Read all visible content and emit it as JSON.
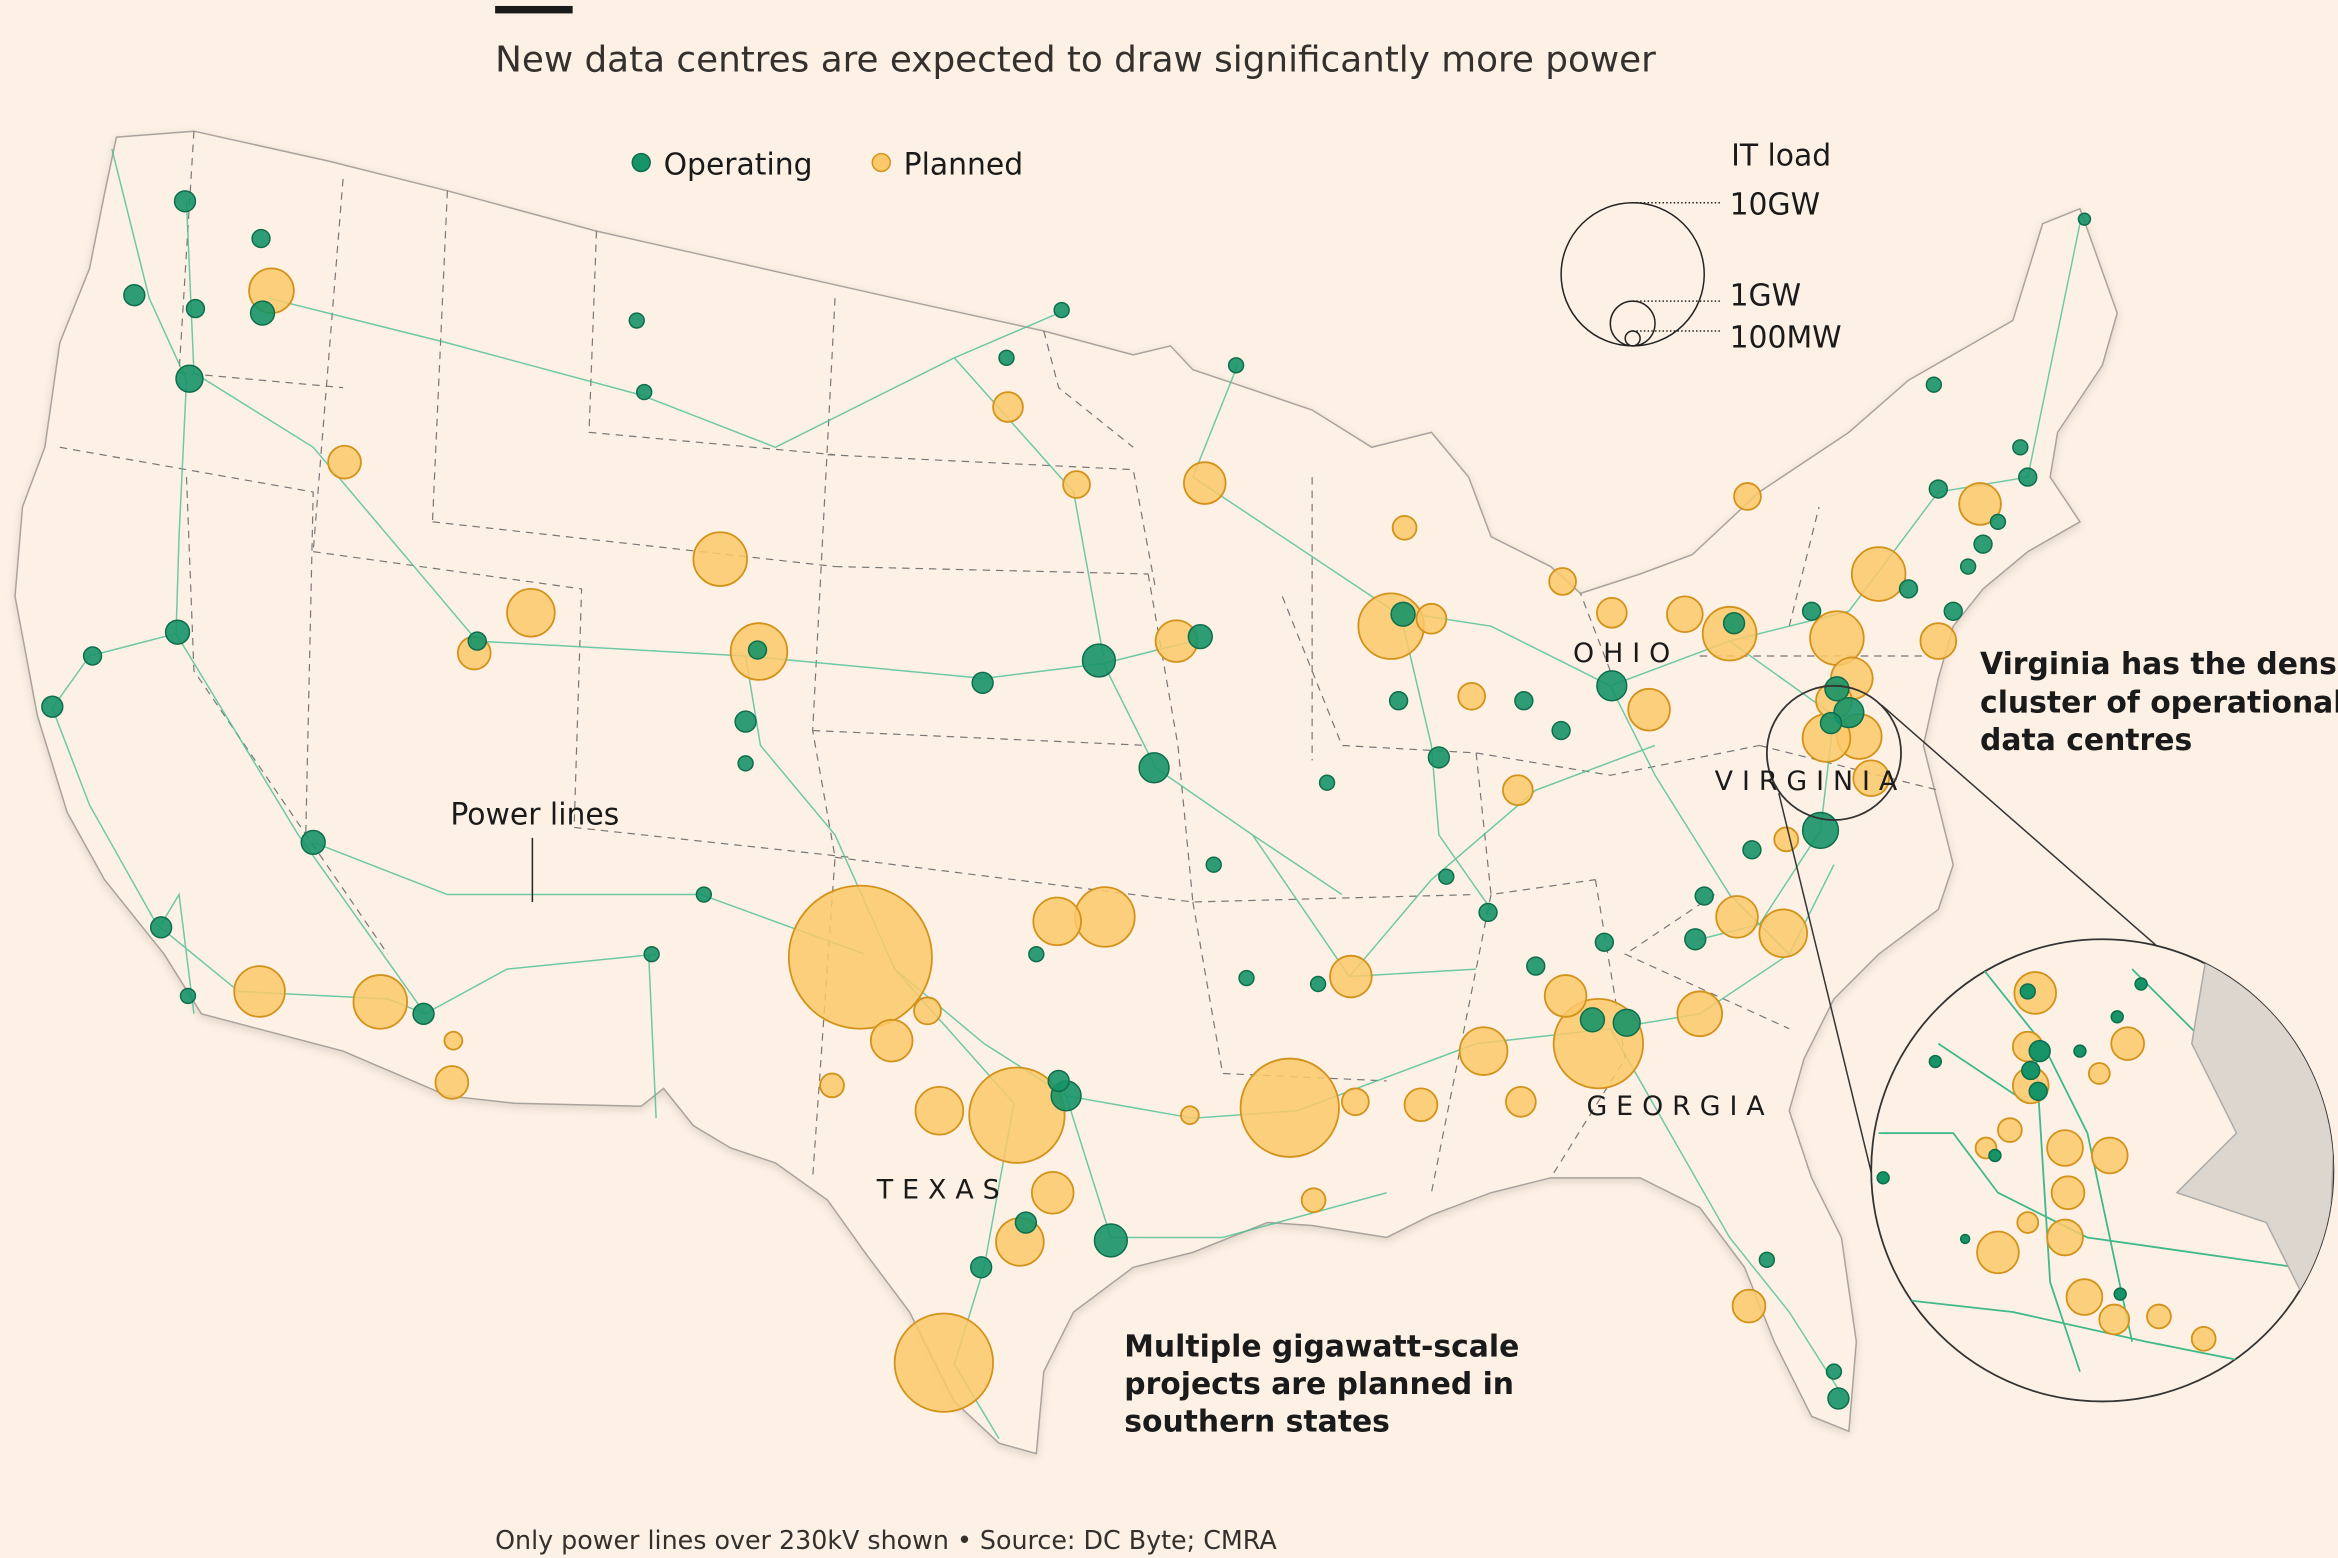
{
  "header": {
    "title": "New data centres are expected to draw significantly more power"
  },
  "legend": {
    "operating": {
      "label": "Operating",
      "color": "#179368"
    },
    "planned": {
      "label": "Planned",
      "color": "#fcc96a"
    },
    "size_title": "IT load",
    "sizes": [
      "10GW",
      "1GW",
      "100MW"
    ]
  },
  "annotations": {
    "power_lines": "Power lines",
    "virginia": [
      "Virginia has the densest",
      "cluster of operational",
      "data centres"
    ],
    "south": [
      "Multiple gigawatt-scale",
      "projects are planned in",
      "southern states"
    ]
  },
  "state_labels": {
    "ohio": "OHIO",
    "virginia": "VIRGINIA",
    "georgia": "GEORGIA",
    "texas": "TEXAS"
  },
  "footer": {
    "note": "Only power lines over 230kV shown • Source: DC Byte; CMRA"
  },
  "colors": {
    "background": "#fdf1e5",
    "land": "#fdf1e5",
    "power_line": "#3fb98a",
    "operating_stroke": "#0e6e4c",
    "planned_stroke": "#d3921a"
  }
}
